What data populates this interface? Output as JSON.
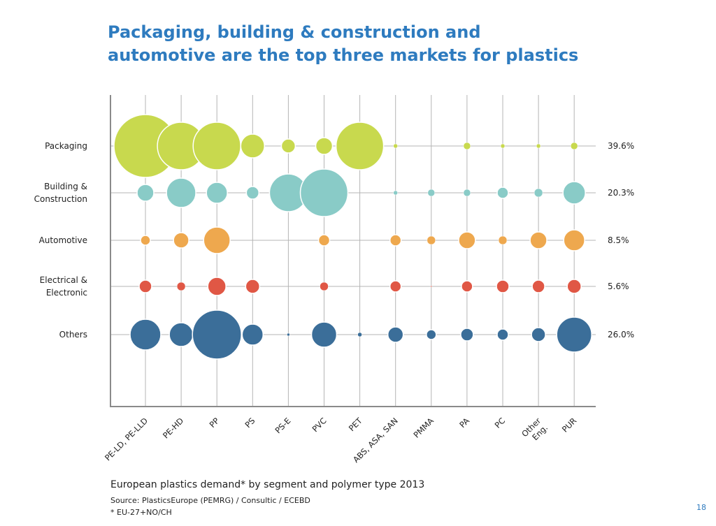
{
  "chart_data": {
    "type": "bubble",
    "title": [
      "Packaging, building & construction and",
      "automotive are the top three markets for plastics"
    ],
    "categories": [
      "PE-LD, PE-LLD",
      "PE-HD",
      "PP",
      "PS",
      "PS-E",
      "PVC",
      "PET",
      "ABS, ASA, SAN",
      "PMMA",
      "PA",
      "PC",
      "Other Eng.",
      "PUR"
    ],
    "series": [
      {
        "name": "Packaging",
        "name_lines": [
          "Packaging"
        ],
        "share": "39.6%",
        "color": "#c8d94e",
        "values": [
          45,
          34,
          34,
          17,
          10,
          12,
          34,
          3,
          0,
          5,
          3,
          3,
          5
        ]
      },
      {
        "name": "Building & Construction",
        "name_lines": [
          "Building &",
          "Construction"
        ],
        "share": "20.3%",
        "color": "#89cbc7",
        "values": [
          12,
          21,
          15,
          9,
          27,
          34,
          0,
          3,
          5,
          5,
          8,
          6,
          16
        ]
      },
      {
        "name": "Automotive",
        "name_lines": [
          "Automotive"
        ],
        "share": "8.5%",
        "color": "#eea84e",
        "values": [
          7,
          11,
          19,
          0,
          0,
          8,
          0,
          8,
          6,
          12,
          6,
          12,
          15
        ]
      },
      {
        "name": "Electrical & Electronic",
        "name_lines": [
          "Electrical &",
          "Electronic"
        ],
        "share": "5.6%",
        "color": "#e05745",
        "values": [
          9,
          6,
          13,
          10,
          0,
          6,
          0,
          8,
          1,
          8,
          9,
          9,
          10
        ]
      },
      {
        "name": "Others",
        "name_lines": [
          "Others"
        ],
        "share": "26.0%",
        "color": "#3b6e99",
        "values": [
          22,
          17,
          35,
          15,
          2,
          18,
          3,
          11,
          7,
          9,
          8,
          10,
          25
        ]
      }
    ],
    "grid": true
  },
  "caption": "European plastics demand* by segment and polymer type 2013",
  "source": "Source: PlasticsEurope (PEMRG) / Consultic / ECEBD",
  "footnote": "* EU-27+NO/CH",
  "page_number": "18"
}
